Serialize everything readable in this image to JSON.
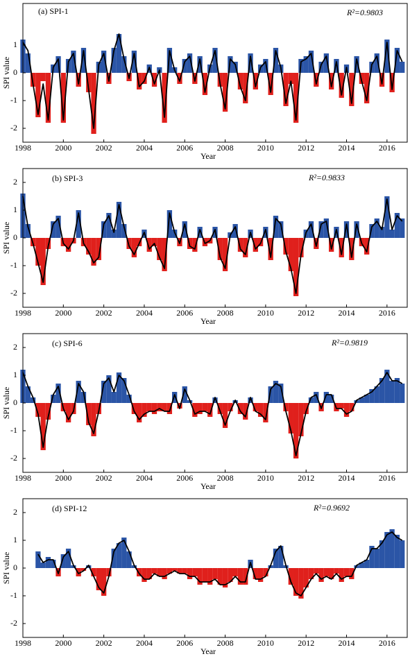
{
  "chart_data": [
    {
      "type": "bar",
      "title": "(a)  SPI-1",
      "annotation": "R²=0.9803",
      "x_label": "Year",
      "y_label": "SPI value",
      "x": [
        1998,
        1998.25,
        1998.5,
        1998.75,
        1999,
        1999.25,
        1999.5,
        1999.75,
        2000,
        2000.25,
        2000.5,
        2000.75,
        2001,
        2001.25,
        2001.5,
        2001.75,
        2002,
        2002.25,
        2002.5,
        2002.75,
        2003,
        2003.25,
        2003.5,
        2003.75,
        2004,
        2004.25,
        2004.5,
        2004.75,
        2005,
        2005.25,
        2005.5,
        2005.75,
        2006,
        2006.25,
        2006.5,
        2006.75,
        2007,
        2007.25,
        2007.5,
        2007.75,
        2008,
        2008.25,
        2008.5,
        2008.75,
        2009,
        2009.25,
        2009.5,
        2009.75,
        2010,
        2010.25,
        2010.5,
        2010.75,
        2011,
        2011.25,
        2011.5,
        2011.75,
        2012,
        2012.25,
        2012.5,
        2012.75,
        2013,
        2013.25,
        2013.5,
        2013.75,
        2014,
        2014.25,
        2014.5,
        2014.75,
        2015,
        2015.25,
        2015.5,
        2015.75,
        2016,
        2016.25,
        2016.5,
        2016.75
      ],
      "series": [
        {
          "type": "bar",
          "color": "#2b55a6",
          "negative_color": "#e0201c",
          "values": [
            1.2,
            0.7,
            -0.5,
            -1.6,
            -0.3,
            -1.8,
            0.3,
            0.6,
            -1.8,
            0.5,
            0.8,
            -0.5,
            0.9,
            -0.7,
            -2.2,
            0.4,
            0.8,
            -0.4,
            0.9,
            1.4,
            0.6,
            -0.3,
            0.8,
            -0.6,
            -0.4,
            0.3,
            -0.5,
            0.2,
            -1.8,
            0.9,
            0.2,
            -0.4,
            0.5,
            0.7,
            -0.4,
            0.6,
            -0.8,
            0.3,
            0.9,
            -0.5,
            -1.4,
            0.6,
            0.4,
            -0.6,
            -1.1,
            0.7,
            -0.6,
            0.3,
            0.5,
            -0.8,
            0.9,
            0.3,
            -1.2,
            -0.4,
            -1.8,
            0.5,
            0.6,
            0.8,
            -0.5,
            0.4,
            0.7,
            -0.6,
            0.5,
            -0.9,
            0.3,
            -1.2,
            0.6,
            -0.4,
            -1.1,
            0.4,
            0.7,
            -0.5,
            1.2,
            -0.7,
            0.9,
            0.4
          ]
        },
        {
          "type": "line",
          "color": "#000000",
          "values": [
            1.1,
            0.8,
            -0.4,
            -1.5,
            -0.4,
            -1.7,
            0.2,
            0.5,
            -1.7,
            0.4,
            0.7,
            -0.4,
            0.8,
            -0.6,
            -2.0,
            0.3,
            0.7,
            -0.3,
            0.8,
            1.4,
            0.5,
            -0.2,
            0.7,
            -0.5,
            -0.3,
            0.2,
            -0.4,
            0.1,
            -1.6,
            0.8,
            0.1,
            -0.3,
            0.4,
            0.6,
            -0.3,
            0.5,
            -0.7,
            0.2,
            0.8,
            -0.4,
            -1.3,
            0.5,
            0.3,
            -0.5,
            -1.0,
            0.6,
            -0.5,
            0.2,
            0.4,
            -0.7,
            0.8,
            0.2,
            -1.1,
            -0.3,
            -1.7,
            0.4,
            0.5,
            0.7,
            -0.4,
            0.3,
            0.6,
            -0.5,
            0.4,
            -0.8,
            0.2,
            -1.1,
            0.5,
            -0.3,
            -1.0,
            0.3,
            0.6,
            -0.4,
            1.1,
            -0.6,
            0.8,
            0.4
          ]
        }
      ],
      "xlim": [
        1998,
        2017
      ],
      "xticks": [
        1998,
        2000,
        2002,
        2004,
        2006,
        2008,
        2010,
        2012,
        2014,
        2016
      ],
      "ylim": [
        -2.5,
        2.5
      ],
      "yticks": [
        -2,
        -1,
        0,
        1
      ]
    },
    {
      "type": "bar",
      "title": "(b)  SPI-3",
      "annotation": "R²=0.9833",
      "x_label": "Year",
      "y_label": "SPI value",
      "x": [
        1998,
        1998.25,
        1998.5,
        1998.75,
        1999,
        1999.25,
        1999.5,
        1999.75,
        2000,
        2000.25,
        2000.5,
        2000.75,
        2001,
        2001.25,
        2001.5,
        2001.75,
        2002,
        2002.25,
        2002.5,
        2002.75,
        2003,
        2003.25,
        2003.5,
        2003.75,
        2004,
        2004.25,
        2004.5,
        2004.75,
        2005,
        2005.25,
        2005.5,
        2005.75,
        2006,
        2006.25,
        2006.5,
        2006.75,
        2007,
        2007.25,
        2007.5,
        2007.75,
        2008,
        2008.25,
        2008.5,
        2008.75,
        2009,
        2009.25,
        2009.5,
        2009.75,
        2010,
        2010.25,
        2010.5,
        2010.75,
        2011,
        2011.25,
        2011.5,
        2011.75,
        2012,
        2012.25,
        2012.5,
        2012.75,
        2013,
        2013.25,
        2013.5,
        2013.75,
        2014,
        2014.25,
        2014.5,
        2014.75,
        2015,
        2015.25,
        2015.5,
        2015.75,
        2016,
        2016.25,
        2016.5,
        2016.75
      ],
      "series": [
        {
          "type": "bar",
          "color": "#2b55a6",
          "negative_color": "#e0201c",
          "values": [
            1.6,
            0.5,
            -0.3,
            -1.0,
            -1.7,
            -0.4,
            0.6,
            0.8,
            -0.3,
            -0.5,
            -0.2,
            1.0,
            -0.3,
            -0.6,
            -1.0,
            -0.8,
            0.6,
            0.9,
            0.3,
            1.3,
            0.5,
            -0.4,
            -0.7,
            -0.3,
            0.3,
            -0.5,
            -0.3,
            -0.8,
            -1.2,
            1.0,
            0.3,
            -0.3,
            0.6,
            -0.4,
            -0.5,
            0.4,
            -0.3,
            -0.2,
            0.4,
            -0.8,
            -1.2,
            0.2,
            0.5,
            -0.5,
            -0.7,
            0.3,
            -0.5,
            -0.3,
            0.4,
            -0.8,
            0.8,
            0.6,
            -0.6,
            -1.2,
            -2.1,
            -0.7,
            0.3,
            0.6,
            -0.4,
            0.6,
            0.7,
            -0.5,
            0.4,
            -0.7,
            0.6,
            -0.8,
            0.6,
            -0.3,
            -0.6,
            0.5,
            0.7,
            0.4,
            1.5,
            0.3,
            0.9,
            0.7
          ]
        },
        {
          "type": "line",
          "color": "#000000",
          "values": [
            1.5,
            0.4,
            -0.2,
            -0.9,
            -1.6,
            -0.3,
            0.5,
            0.7,
            -0.2,
            -0.4,
            -0.1,
            0.9,
            -0.2,
            -0.5,
            -0.9,
            -0.7,
            0.5,
            0.8,
            0.2,
            1.2,
            0.4,
            -0.3,
            -0.6,
            -0.2,
            0.2,
            -0.4,
            -0.2,
            -0.7,
            -1.1,
            0.9,
            0.2,
            -0.2,
            0.5,
            -0.3,
            -0.4,
            0.3,
            -0.2,
            -0.1,
            0.3,
            -0.7,
            -1.1,
            0.1,
            0.4,
            -0.4,
            -0.6,
            0.2,
            -0.4,
            -0.2,
            0.3,
            -0.7,
            0.7,
            0.5,
            -0.5,
            -1.1,
            -2.0,
            -0.6,
            0.2,
            0.5,
            -0.3,
            0.5,
            0.6,
            -0.4,
            0.3,
            -0.6,
            0.5,
            -0.7,
            0.5,
            -0.2,
            -0.5,
            0.4,
            0.6,
            0.3,
            1.4,
            0.3,
            0.8,
            0.6
          ]
        }
      ],
      "xlim": [
        1998,
        2017
      ],
      "xticks": [
        1998,
        2000,
        2002,
        2004,
        2006,
        2008,
        2010,
        2012,
        2014,
        2016
      ],
      "ylim": [
        -2.5,
        2.5
      ],
      "yticks": [
        -2,
        -1,
        0,
        1,
        2
      ]
    },
    {
      "type": "bar",
      "title": "(c)  SPI-6",
      "annotation": "R²=0.9819",
      "x_label": "Year",
      "y_label": "SPI value",
      "x": [
        1998,
        1998.25,
        1998.5,
        1998.75,
        1999,
        1999.25,
        1999.5,
        1999.75,
        2000,
        2000.25,
        2000.5,
        2000.75,
        2001,
        2001.25,
        2001.5,
        2001.75,
        2002,
        2002.25,
        2002.5,
        2002.75,
        2003,
        2003.25,
        2003.5,
        2003.75,
        2004,
        2004.25,
        2004.5,
        2004.75,
        2005,
        2005.25,
        2005.5,
        2005.75,
        2006,
        2006.25,
        2006.5,
        2006.75,
        2007,
        2007.25,
        2007.5,
        2007.75,
        2008,
        2008.25,
        2008.5,
        2008.75,
        2009,
        2009.25,
        2009.5,
        2009.75,
        2010,
        2010.25,
        2010.5,
        2010.75,
        2011,
        2011.25,
        2011.5,
        2011.75,
        2012,
        2012.25,
        2012.5,
        2012.75,
        2013,
        2013.25,
        2013.5,
        2013.75,
        2014,
        2014.25,
        2014.5,
        2014.75,
        2015,
        2015.25,
        2015.5,
        2015.75,
        2016,
        2016.25,
        2016.5,
        2016.75
      ],
      "series": [
        {
          "type": "bar",
          "color": "#2b55a6",
          "negative_color": "#e0201c",
          "values": [
            1.2,
            0.6,
            0.2,
            -0.5,
            -1.7,
            -0.6,
            0.3,
            0.7,
            -0.3,
            -0.7,
            -0.4,
            0.8,
            0.4,
            -0.8,
            -1.2,
            -0.4,
            0.8,
            1.0,
            0.4,
            1.1,
            0.9,
            0.3,
            -0.4,
            -0.7,
            -0.5,
            -0.3,
            -0.4,
            -0.3,
            -0.3,
            -0.4,
            0.4,
            -0.2,
            0.6,
            0.1,
            -0.5,
            -0.4,
            -0.3,
            -0.5,
            0.2,
            -0.4,
            -0.9,
            -0.3,
            0.1,
            -0.4,
            -0.6,
            0.2,
            -0.3,
            -0.5,
            -0.7,
            0.6,
            0.8,
            0.7,
            -0.3,
            -1.1,
            -2.0,
            -1.2,
            -0.4,
            0.2,
            0.4,
            -0.3,
            0.4,
            0.3,
            -0.3,
            -0.2,
            -0.5,
            -0.3,
            0.1,
            0.2,
            0.3,
            0.5,
            0.6,
            0.9,
            1.2,
            0.8,
            0.9,
            0.7
          ]
        },
        {
          "type": "line",
          "color": "#000000",
          "values": [
            1.1,
            0.6,
            0.2,
            -0.4,
            -1.6,
            -0.5,
            0.3,
            0.6,
            -0.2,
            -0.6,
            -0.3,
            0.7,
            0.4,
            -0.7,
            -1.1,
            -0.3,
            0.7,
            0.9,
            0.4,
            1.0,
            0.8,
            0.3,
            -0.3,
            -0.6,
            -0.4,
            -0.3,
            -0.3,
            -0.2,
            -0.3,
            -0.3,
            0.3,
            -0.2,
            0.5,
            0.1,
            -0.4,
            -0.3,
            -0.3,
            -0.4,
            0.2,
            -0.3,
            -0.8,
            -0.3,
            0.1,
            -0.3,
            -0.5,
            0.2,
            -0.3,
            -0.4,
            -0.6,
            0.5,
            0.7,
            0.6,
            -0.3,
            -1.0,
            -1.9,
            -1.1,
            -0.3,
            0.2,
            0.3,
            -0.2,
            0.3,
            0.3,
            -0.2,
            -0.2,
            -0.4,
            -0.3,
            0.1,
            0.2,
            0.3,
            0.4,
            0.6,
            0.8,
            1.1,
            0.8,
            0.8,
            0.7
          ]
        }
      ],
      "xlim": [
        1998,
        2017
      ],
      "xticks": [
        1998,
        2000,
        2002,
        2004,
        2006,
        2008,
        2010,
        2012,
        2014,
        2016
      ],
      "ylim": [
        -2.5,
        2.5
      ],
      "yticks": [
        -2,
        -1,
        0,
        1,
        2
      ]
    },
    {
      "type": "bar",
      "title": "(d)  SPI-12",
      "annotation": "R²=0.9692",
      "x_label": "Year",
      "y_label": "SPI value",
      "x": [
        1998,
        1998.25,
        1998.5,
        1998.75,
        1999,
        1999.25,
        1999.5,
        1999.75,
        2000,
        2000.25,
        2000.5,
        2000.75,
        2001,
        2001.25,
        2001.5,
        2001.75,
        2002,
        2002.25,
        2002.5,
        2002.75,
        2003,
        2003.25,
        2003.5,
        2003.75,
        2004,
        2004.25,
        2004.5,
        2004.75,
        2005,
        2005.25,
        2005.5,
        2005.75,
        2006,
        2006.25,
        2006.5,
        2006.75,
        2007,
        2007.25,
        2007.5,
        2007.75,
        2008,
        2008.25,
        2008.5,
        2008.75,
        2009,
        2009.25,
        2009.5,
        2009.75,
        2010,
        2010.25,
        2010.5,
        2010.75,
        2011,
        2011.25,
        2011.5,
        2011.75,
        2012,
        2012.25,
        2012.5,
        2012.75,
        2013,
        2013.25,
        2013.5,
        2013.75,
        2014,
        2014.25,
        2014.5,
        2014.75,
        2015,
        2015.25,
        2015.5,
        2015.75,
        2016,
        2016.25,
        2016.5,
        2016.75
      ],
      "series": [
        {
          "type": "bar",
          "color": "#2b55a6",
          "negative_color": "#e0201c",
          "values": [
            null,
            null,
            null,
            0.6,
            0.2,
            0.4,
            0.3,
            -0.3,
            0.5,
            0.7,
            0.1,
            -0.3,
            -0.1,
            0.1,
            -0.3,
            -0.8,
            -1.0,
            -0.3,
            0.7,
            0.9,
            1.1,
            0.6,
            0.1,
            -0.3,
            -0.5,
            -0.4,
            -0.2,
            -0.3,
            -0.4,
            -0.2,
            -0.1,
            -0.2,
            -0.2,
            -0.4,
            -0.3,
            -0.6,
            -0.5,
            -0.6,
            -0.4,
            -0.6,
            -0.7,
            -0.5,
            -0.3,
            -0.6,
            -0.6,
            0.3,
            -0.4,
            -0.5,
            -0.3,
            0.1,
            0.7,
            0.8,
            0.1,
            -0.6,
            -1.0,
            -1.1,
            -0.7,
            -0.4,
            -0.2,
            -0.5,
            -0.3,
            -0.4,
            -0.2,
            -0.5,
            -0.3,
            -0.4,
            0.1,
            0.2,
            0.3,
            0.8,
            0.7,
            1.0,
            1.3,
            1.4,
            1.2,
            1.0
          ]
        },
        {
          "type": "line",
          "color": "#000000",
          "values": [
            null,
            null,
            null,
            0.5,
            0.2,
            0.3,
            0.3,
            -0.2,
            0.4,
            0.6,
            0.1,
            -0.2,
            -0.1,
            0.1,
            -0.3,
            -0.7,
            -0.9,
            -0.3,
            0.6,
            0.9,
            1.0,
            0.6,
            0.1,
            -0.2,
            -0.4,
            -0.4,
            -0.2,
            -0.3,
            -0.3,
            -0.2,
            -0.1,
            -0.2,
            -0.2,
            -0.3,
            -0.3,
            -0.5,
            -0.5,
            -0.5,
            -0.4,
            -0.6,
            -0.6,
            -0.5,
            -0.3,
            -0.5,
            -0.5,
            0.2,
            -0.4,
            -0.4,
            -0.3,
            0.1,
            0.6,
            0.8,
            0.1,
            -0.5,
            -0.9,
            -1.0,
            -0.7,
            -0.4,
            -0.2,
            -0.4,
            -0.3,
            -0.4,
            -0.2,
            -0.4,
            -0.3,
            -0.3,
            0.1,
            0.2,
            0.3,
            0.7,
            0.7,
            0.9,
            1.2,
            1.3,
            1.1,
            1.0
          ]
        }
      ],
      "xlim": [
        1998,
        2017
      ],
      "xticks": [
        1998,
        2000,
        2002,
        2004,
        2006,
        2008,
        2010,
        2012,
        2014,
        2016
      ],
      "ylim": [
        -2.5,
        2.5
      ],
      "yticks": [
        -2,
        -1,
        0,
        1,
        2
      ]
    }
  ]
}
